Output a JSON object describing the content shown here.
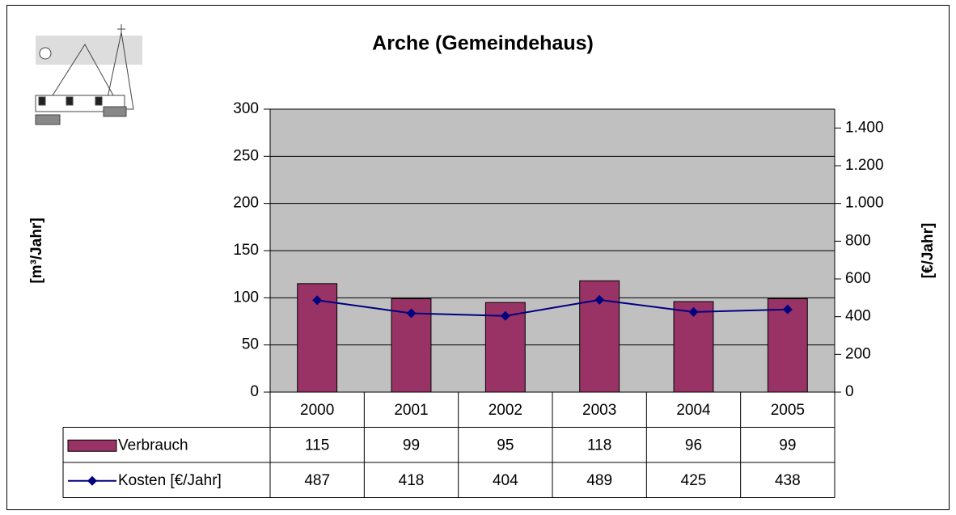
{
  "chart_data": {
    "type": "bar-line",
    "title": "Arche (Gemeindehaus)",
    "y_label": "[m³/Jahr]",
    "y2_label": "[€/Jahr]",
    "categories": [
      "2000",
      "2001",
      "2002",
      "2003",
      "2004",
      "2005"
    ],
    "series": [
      {
        "name": "Verbrauch",
        "type": "bar",
        "color": "#993366",
        "values": [
          115,
          99,
          95,
          118,
          96,
          99
        ]
      },
      {
        "name": "Kosten [€/Jahr]",
        "type": "line",
        "axis": "y2",
        "color": "#000080",
        "values": [
          487,
          418,
          404,
          489,
          425,
          438
        ]
      }
    ],
    "ylim": [
      0,
      300
    ],
    "yticks": [
      0,
      50,
      100,
      150,
      200,
      250,
      300
    ],
    "y2lim": [
      0,
      1500
    ],
    "y2ticks": [
      0,
      200,
      400,
      600,
      800,
      {
        "value": 1000,
        "label": "1.000"
      },
      {
        "value": 1200,
        "label": "1.200"
      },
      {
        "value": 1400,
        "label": "1.400"
      }
    ],
    "grid": true,
    "plot_background": "#c0c0c0",
    "data_table": true
  }
}
